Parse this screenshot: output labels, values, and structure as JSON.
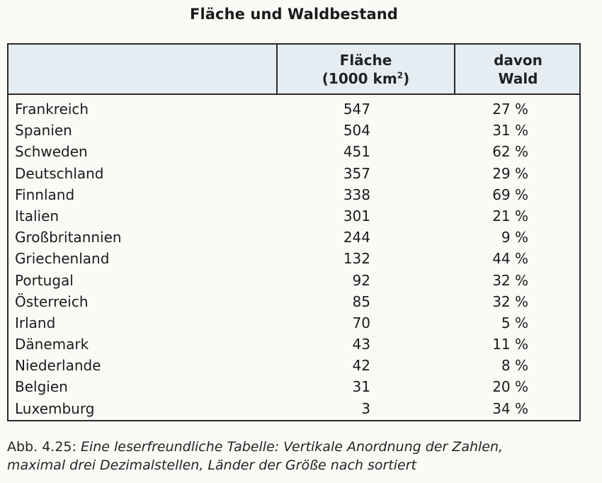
{
  "title": "Fläche und Waldbestand",
  "header": {
    "area_line1": "Fläche",
    "area_line2_pre": "(1000 km",
    "area_line2_sup": "2",
    "area_line2_post": ")",
    "forest_line1": "davon",
    "forest_line2": "Wald"
  },
  "rows": [
    {
      "country": "Frankreich",
      "area": "547",
      "forest": "27 %"
    },
    {
      "country": "Spanien",
      "area": "504",
      "forest": "31 %"
    },
    {
      "country": "Schweden",
      "area": "451",
      "forest": "62 %"
    },
    {
      "country": "Deutschland",
      "area": "357",
      "forest": "29 %"
    },
    {
      "country": "Finnland",
      "area": "338",
      "forest": "69 %"
    },
    {
      "country": "Italien",
      "area": "301",
      "forest": "21 %"
    },
    {
      "country": "Großbritannien",
      "area": "244",
      "forest": "9 %"
    },
    {
      "country": "Griechenland",
      "area": "132",
      "forest": "44 %"
    },
    {
      "country": "Portugal",
      "area": "92",
      "forest": "32 %"
    },
    {
      "country": "Österreich",
      "area": "85",
      "forest": "32 %"
    },
    {
      "country": "Irland",
      "area": "70",
      "forest": "5 %"
    },
    {
      "country": "Dänemark",
      "area": "43",
      "forest": "11 %"
    },
    {
      "country": "Niederlande",
      "area": "42",
      "forest": "8 %"
    },
    {
      "country": "Belgien",
      "area": "31",
      "forest": "20 %"
    },
    {
      "country": "Luxemburg",
      "area": "3",
      "forest": "34 %"
    }
  ],
  "caption": {
    "label": "Abb. 4.25:",
    "line1": "Eine leserfreundliche Tabelle: Vertikale Anordnung der Zahlen,",
    "line2": "maximal drei Dezimalstellen, Länder der Größe nach sortiert"
  },
  "colors": {
    "header_background": "#e6edf2",
    "border": "#2a2a2a",
    "page": "#fbfaf7"
  }
}
